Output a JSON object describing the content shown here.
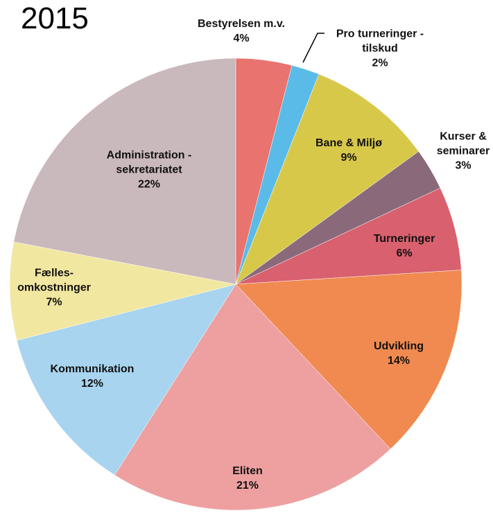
{
  "chart_data": {
    "type": "pie",
    "title": "2015",
    "categories": [
      "Bestyrelsen m.v.",
      "Pro turneringer - tilskud",
      "Bane & Miljø",
      "Kurser & seminarer",
      "Turneringer",
      "Udvikling",
      "Eliten",
      "Kommunikation",
      "Fælles-omkostninger",
      "Administration - sekretariatet"
    ],
    "values": [
      4,
      2,
      9,
      3,
      6,
      14,
      21,
      12,
      7,
      22
    ],
    "value_labels": [
      "4%",
      "2%",
      "9%",
      "3%",
      "6%",
      "14%",
      "21%",
      "12%",
      "7%",
      "22%"
    ],
    "colors": [
      "#e8736f",
      "#5bbbe8",
      "#d8c84a",
      "#8a6a7a",
      "#d9606e",
      "#f08a50",
      "#eea0a0",
      "#a8d4ef",
      "#f2e7a0",
      "#c9b8bc"
    ]
  }
}
